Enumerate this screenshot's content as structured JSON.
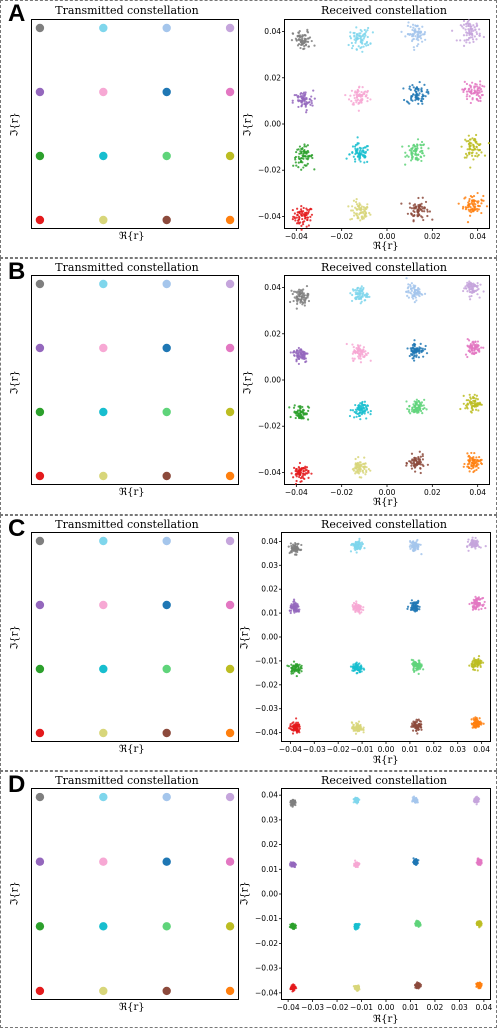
{
  "symbol_colors": [
    "#e41a1c",
    "#d8d67a",
    "#8c4a3c",
    "#ff7f0e",
    "#2ca02c",
    "#17becf",
    "#5fd47a",
    "#bcbd22",
    "#9467bd",
    "#f7a8d4",
    "#1f77b4",
    "#e377c2",
    "#7f7f7f",
    "#7fd6ec",
    "#a5c6ec",
    "#c5a5dc"
  ],
  "chart_data": [
    {
      "panel": "A",
      "type": "scatter",
      "title": "Transmitted constellation",
      "xlabel": "ℜ{r}",
      "ylabel": "ℑ{r}",
      "grid": false,
      "points": [
        {
          "x": -3,
          "y": -3,
          "color": "#e41a1c"
        },
        {
          "x": -1,
          "y": -3,
          "color": "#d8d67a"
        },
        {
          "x": 1,
          "y": -3,
          "color": "#8c4a3c"
        },
        {
          "x": 3,
          "y": -3,
          "color": "#ff7f0e"
        },
        {
          "x": -3,
          "y": -1,
          "color": "#2ca02c"
        },
        {
          "x": -1,
          "y": -1,
          "color": "#17becf"
        },
        {
          "x": 1,
          "y": -1,
          "color": "#5fd47a"
        },
        {
          "x": 3,
          "y": -1,
          "color": "#bcbd22"
        },
        {
          "x": -3,
          "y": 1,
          "color": "#9467bd"
        },
        {
          "x": -1,
          "y": 1,
          "color": "#f7a8d4"
        },
        {
          "x": 1,
          "y": 1,
          "color": "#1f77b4"
        },
        {
          "x": 3,
          "y": 1,
          "color": "#e377c2"
        },
        {
          "x": -3,
          "y": 3,
          "color": "#7f7f7f"
        },
        {
          "x": -1,
          "y": 3,
          "color": "#7fd6ec"
        },
        {
          "x": 1,
          "y": 3,
          "color": "#a5c6ec"
        },
        {
          "x": 3,
          "y": 3,
          "color": "#c5a5dc"
        }
      ]
    },
    {
      "panel": "A",
      "type": "scatter",
      "title": "Received constellation",
      "xlabel": "ℜ{r}",
      "ylabel": "ℑ{r}",
      "xlim": [
        -0.045,
        0.045
      ],
      "ylim": [
        -0.045,
        0.045
      ],
      "xticks": [
        -0.04,
        -0.02,
        0.0,
        0.02,
        0.04
      ],
      "xtick_labels": [
        "−0.04",
        "−0.02",
        "0.00",
        "0.02",
        "0.04"
      ],
      "yticks": [
        -0.04,
        -0.02,
        0.0,
        0.02,
        0.04
      ],
      "ytick_labels": [
        "−0.04",
        "−0.02",
        "0.00",
        "0.02",
        "0.04"
      ],
      "cluster_spread": 0.0022,
      "grid": false,
      "centers": [
        {
          "x": -0.037,
          "y": -0.04
        },
        {
          "x": -0.012,
          "y": -0.038
        },
        {
          "x": 0.014,
          "y": -0.037
        },
        {
          "x": 0.038,
          "y": -0.035
        },
        {
          "x": -0.037,
          "y": -0.014
        },
        {
          "x": -0.012,
          "y": -0.013
        },
        {
          "x": 0.013,
          "y": -0.012
        },
        {
          "x": 0.038,
          "y": -0.01
        },
        {
          "x": -0.037,
          "y": 0.01
        },
        {
          "x": -0.012,
          "y": 0.012
        },
        {
          "x": 0.013,
          "y": 0.013
        },
        {
          "x": 0.038,
          "y": 0.014
        },
        {
          "x": -0.037,
          "y": 0.036
        },
        {
          "x": -0.012,
          "y": 0.037
        },
        {
          "x": 0.013,
          "y": 0.039
        },
        {
          "x": 0.037,
          "y": 0.04
        }
      ]
    },
    {
      "panel": "B",
      "type": "scatter",
      "title": "Transmitted constellation",
      "xlabel": "ℜ{r}",
      "ylabel": "ℑ{r}",
      "grid": false,
      "points": [
        {
          "x": -3,
          "y": -3,
          "color": "#e41a1c"
        },
        {
          "x": -1,
          "y": -3,
          "color": "#d8d67a"
        },
        {
          "x": 1,
          "y": -3,
          "color": "#8c4a3c"
        },
        {
          "x": 3,
          "y": -3,
          "color": "#ff7f0e"
        },
        {
          "x": -3,
          "y": -1,
          "color": "#2ca02c"
        },
        {
          "x": -1,
          "y": -1,
          "color": "#17becf"
        },
        {
          "x": 1,
          "y": -1,
          "color": "#5fd47a"
        },
        {
          "x": 3,
          "y": -1,
          "color": "#bcbd22"
        },
        {
          "x": -3,
          "y": 1,
          "color": "#9467bd"
        },
        {
          "x": -1,
          "y": 1,
          "color": "#f7a8d4"
        },
        {
          "x": 1,
          "y": 1,
          "color": "#1f77b4"
        },
        {
          "x": 3,
          "y": 1,
          "color": "#e377c2"
        },
        {
          "x": -3,
          "y": 3,
          "color": "#7f7f7f"
        },
        {
          "x": -1,
          "y": 3,
          "color": "#7fd6ec"
        },
        {
          "x": 1,
          "y": 3,
          "color": "#a5c6ec"
        },
        {
          "x": 3,
          "y": 3,
          "color": "#c5a5dc"
        }
      ]
    },
    {
      "panel": "B",
      "type": "scatter",
      "title": "Received constellation",
      "xlabel": "ℜ{r}",
      "ylabel": "ℑ{r}",
      "xlim": [
        -0.045,
        0.045
      ],
      "ylim": [
        -0.045,
        0.045
      ],
      "xticks": [
        -0.04,
        -0.02,
        0.0,
        0.02,
        0.04
      ],
      "xtick_labels": [
        "−0.04",
        "−0.02",
        "0.00",
        "0.02",
        "0.04"
      ],
      "yticks": [
        -0.04,
        -0.02,
        0.0,
        0.02,
        0.04
      ],
      "ytick_labels": [
        "−0.04",
        "−0.02",
        "0.00",
        "0.02",
        "0.04"
      ],
      "cluster_spread": 0.0017,
      "grid": false,
      "centers": [
        {
          "x": -0.038,
          "y": -0.04
        },
        {
          "x": -0.012,
          "y": -0.038
        },
        {
          "x": 0.013,
          "y": -0.036
        },
        {
          "x": 0.038,
          "y": -0.036
        },
        {
          "x": -0.038,
          "y": -0.014
        },
        {
          "x": -0.012,
          "y": -0.013
        },
        {
          "x": 0.013,
          "y": -0.012
        },
        {
          "x": 0.038,
          "y": -0.01
        },
        {
          "x": -0.038,
          "y": 0.011
        },
        {
          "x": -0.012,
          "y": 0.012
        },
        {
          "x": 0.013,
          "y": 0.013
        },
        {
          "x": 0.038,
          "y": 0.014
        },
        {
          "x": -0.038,
          "y": 0.036
        },
        {
          "x": -0.012,
          "y": 0.037
        },
        {
          "x": 0.012,
          "y": 0.038
        },
        {
          "x": 0.037,
          "y": 0.04
        }
      ]
    },
    {
      "panel": "C",
      "type": "scatter",
      "title": "Transmitted constellation",
      "xlabel": "ℜ{r}",
      "ylabel": "ℑ{r}",
      "grid": false,
      "points": [
        {
          "x": -3,
          "y": -3,
          "color": "#e41a1c"
        },
        {
          "x": -1,
          "y": -3,
          "color": "#d8d67a"
        },
        {
          "x": 1,
          "y": -3,
          "color": "#8c4a3c"
        },
        {
          "x": 3,
          "y": -3,
          "color": "#ff7f0e"
        },
        {
          "x": -3,
          "y": -1,
          "color": "#2ca02c"
        },
        {
          "x": -1,
          "y": -1,
          "color": "#17becf"
        },
        {
          "x": 1,
          "y": -1,
          "color": "#5fd47a"
        },
        {
          "x": 3,
          "y": -1,
          "color": "#bcbd22"
        },
        {
          "x": -3,
          "y": 1,
          "color": "#9467bd"
        },
        {
          "x": -1,
          "y": 1,
          "color": "#f7a8d4"
        },
        {
          "x": 1,
          "y": 1,
          "color": "#1f77b4"
        },
        {
          "x": 3,
          "y": 1,
          "color": "#e377c2"
        },
        {
          "x": -3,
          "y": 3,
          "color": "#7f7f7f"
        },
        {
          "x": -1,
          "y": 3,
          "color": "#7fd6ec"
        },
        {
          "x": 1,
          "y": 3,
          "color": "#a5c6ec"
        },
        {
          "x": 3,
          "y": 3,
          "color": "#c5a5dc"
        }
      ]
    },
    {
      "panel": "C",
      "type": "scatter",
      "title": "Received constellation",
      "xlabel": "ℜ{r}",
      "ylabel": "ℑ{r}",
      "xlim": [
        -0.0435,
        0.0435
      ],
      "ylim": [
        -0.0435,
        0.0435
      ],
      "xticks": [
        -0.04,
        -0.03,
        -0.02,
        -0.01,
        0.0,
        0.01,
        0.02,
        0.03,
        0.04
      ],
      "xtick_labels": [
        "−0.04",
        "−0.03",
        "−0.02",
        "−0.01",
        "0.00",
        "0.01",
        "0.02",
        "0.03",
        "0.04"
      ],
      "yticks": [
        -0.04,
        -0.03,
        -0.02,
        -0.01,
        0.0,
        0.01,
        0.02,
        0.03,
        0.04
      ],
      "ytick_labels": [
        "−0.04",
        "−0.03",
        "−0.02",
        "−0.01",
        "0.00",
        "0.01",
        "0.02",
        "0.03",
        "0.04"
      ],
      "cluster_spread": 0.0011,
      "grid": false,
      "centers": [
        {
          "x": -0.038,
          "y": -0.038
        },
        {
          "x": -0.012,
          "y": -0.038
        },
        {
          "x": 0.013,
          "y": -0.037
        },
        {
          "x": 0.038,
          "y": -0.036
        },
        {
          "x": -0.038,
          "y": -0.013
        },
        {
          "x": -0.012,
          "y": -0.013
        },
        {
          "x": 0.013,
          "y": -0.012
        },
        {
          "x": 0.038,
          "y": -0.011
        },
        {
          "x": -0.038,
          "y": 0.012
        },
        {
          "x": -0.012,
          "y": 0.012
        },
        {
          "x": 0.012,
          "y": 0.013
        },
        {
          "x": 0.038,
          "y": 0.014
        },
        {
          "x": -0.038,
          "y": 0.037
        },
        {
          "x": -0.012,
          "y": 0.038
        },
        {
          "x": 0.012,
          "y": 0.038
        },
        {
          "x": 0.037,
          "y": 0.039
        }
      ]
    },
    {
      "panel": "D",
      "type": "scatter",
      "title": "Transmitted constellation",
      "xlabel": "ℜ{r}",
      "ylabel": "ℑ{r}",
      "grid": false,
      "points": [
        {
          "x": -3,
          "y": -3,
          "color": "#e41a1c"
        },
        {
          "x": -1,
          "y": -3,
          "color": "#d8d67a"
        },
        {
          "x": 1,
          "y": -3,
          "color": "#8c4a3c"
        },
        {
          "x": 3,
          "y": -3,
          "color": "#ff7f0e"
        },
        {
          "x": -3,
          "y": -1,
          "color": "#2ca02c"
        },
        {
          "x": -1,
          "y": -1,
          "color": "#17becf"
        },
        {
          "x": 1,
          "y": -1,
          "color": "#5fd47a"
        },
        {
          "x": 3,
          "y": -1,
          "color": "#bcbd22"
        },
        {
          "x": -3,
          "y": 1,
          "color": "#9467bd"
        },
        {
          "x": -1,
          "y": 1,
          "color": "#f7a8d4"
        },
        {
          "x": 1,
          "y": 1,
          "color": "#1f77b4"
        },
        {
          "x": 3,
          "y": 1,
          "color": "#e377c2"
        },
        {
          "x": -3,
          "y": 3,
          "color": "#7f7f7f"
        },
        {
          "x": -1,
          "y": 3,
          "color": "#7fd6ec"
        },
        {
          "x": 1,
          "y": 3,
          "color": "#a5c6ec"
        },
        {
          "x": 3,
          "y": 3,
          "color": "#c5a5dc"
        }
      ]
    },
    {
      "panel": "D",
      "type": "scatter",
      "title": "Received constellation",
      "xlabel": "ℜ{r}",
      "ylabel": "ℑ{r}",
      "xlim": [
        -0.0425,
        0.0425
      ],
      "ylim": [
        -0.0425,
        0.0425
      ],
      "xticks": [
        -0.04,
        -0.03,
        -0.02,
        -0.01,
        0.0,
        0.01,
        0.02,
        0.03,
        0.04
      ],
      "xtick_labels": [
        "−0.04",
        "−0.03",
        "−0.02",
        "−0.01",
        "0.00",
        "0.01",
        "0.02",
        "0.03",
        "0.04"
      ],
      "yticks": [
        -0.04,
        -0.03,
        -0.02,
        -0.01,
        0.0,
        0.01,
        0.02,
        0.03,
        0.04
      ],
      "ytick_labels": [
        "−0.04",
        "−0.03",
        "−0.02",
        "−0.01",
        "0.00",
        "0.01",
        "0.02",
        "0.03",
        "0.04"
      ],
      "cluster_spread": 0.0005,
      "grid": false,
      "centers": [
        {
          "x": -0.038,
          "y": -0.038
        },
        {
          "x": -0.012,
          "y": -0.038
        },
        {
          "x": 0.013,
          "y": -0.037
        },
        {
          "x": 0.038,
          "y": -0.037
        },
        {
          "x": -0.038,
          "y": -0.013
        },
        {
          "x": -0.012,
          "y": -0.013
        },
        {
          "x": 0.013,
          "y": -0.012
        },
        {
          "x": 0.038,
          "y": -0.012
        },
        {
          "x": -0.038,
          "y": 0.012
        },
        {
          "x": -0.012,
          "y": 0.012
        },
        {
          "x": 0.012,
          "y": 0.013
        },
        {
          "x": 0.038,
          "y": 0.013
        },
        {
          "x": -0.038,
          "y": 0.037
        },
        {
          "x": -0.012,
          "y": 0.038
        },
        {
          "x": 0.012,
          "y": 0.038
        },
        {
          "x": 0.037,
          "y": 0.038
        }
      ]
    }
  ]
}
